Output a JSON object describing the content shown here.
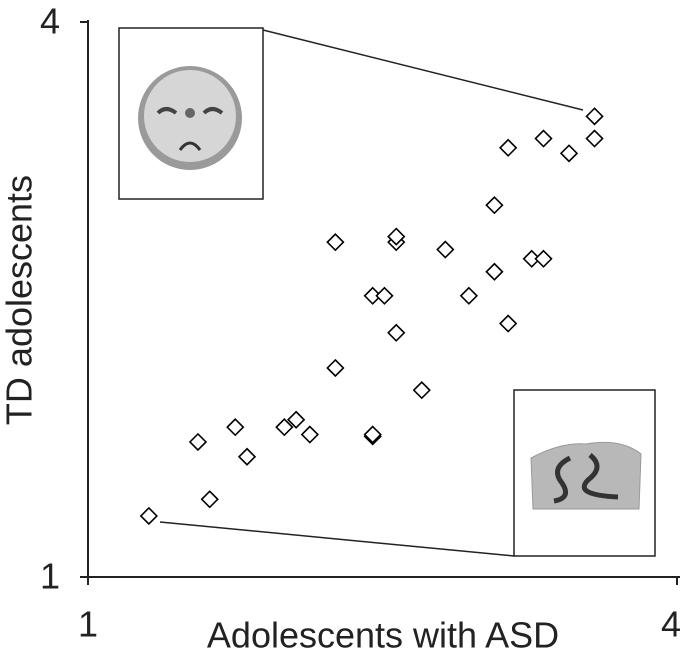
{
  "chart_data": {
    "type": "scatter",
    "x_label": "Adolescents with ASD",
    "y_label": "TD adolescents",
    "xlim": [
      1,
      4
    ],
    "ylim": [
      1,
      4
    ],
    "xticks": [
      1,
      4
    ],
    "yticks": [
      1,
      4
    ],
    "color": "#000000",
    "x": [
      1.31,
      1.62,
      1.56,
      1.75,
      1.81,
      2.0,
      2.06,
      2.13,
      2.26,
      2.26,
      2.45,
      2.45,
      2.45,
      2.51,
      2.57,
      2.57,
      2.57,
      2.7,
      2.82,
      2.94,
      3.07,
      3.07,
      3.14,
      3.14,
      3.26,
      3.32,
      3.32,
      3.45,
      3.58,
      3.58
    ],
    "values": [
      1.33,
      1.42,
      1.73,
      1.81,
      1.65,
      1.81,
      1.85,
      1.77,
      2.13,
      2.81,
      1.76,
      1.77,
      2.52,
      2.52,
      2.32,
      2.81,
      2.84,
      2.01,
      2.77,
      2.52,
      2.65,
      3.01,
      2.37,
      3.32,
      2.72,
      2.72,
      3.37,
      3.29,
      3.49,
      3.37
    ]
  }
}
